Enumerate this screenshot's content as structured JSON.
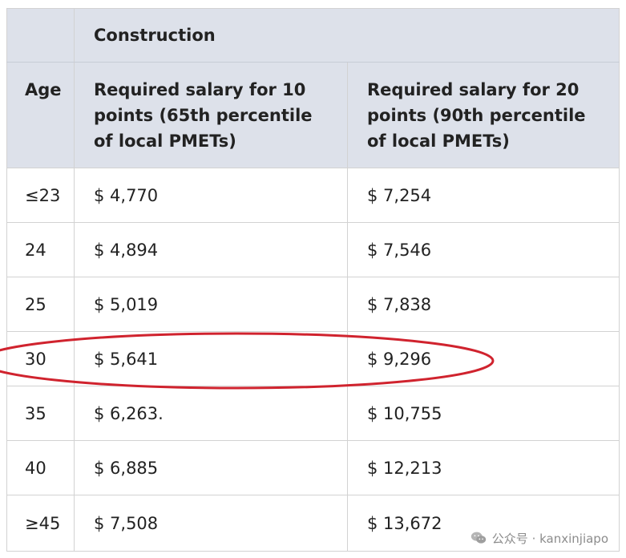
{
  "table": {
    "section_title": "Construction",
    "headers": {
      "age": "Age",
      "col_10": "Required salary for 10 points (65th percentile of local PMETs)",
      "col_20": "Required salary for 20 points (90th percentile of local PMETs)"
    },
    "rows": [
      {
        "age": "≤23",
        "salary_10": "$ 4,770",
        "salary_20": "$ 7,254"
      },
      {
        "age": "24",
        "salary_10": "$ 4,894",
        "salary_20": "$ 7,546"
      },
      {
        "age": "25",
        "salary_10": "$ 5,019",
        "salary_20": "$ 7,838"
      },
      {
        "age": "30",
        "salary_10": "$ 5,641",
        "salary_20": "$ 9,296"
      },
      {
        "age": "35",
        "salary_10": "$ 6,263.",
        "salary_20": "$ 10,755"
      },
      {
        "age": "40",
        "salary_10": "$ 6,885",
        "salary_20": "$ 12,213"
      },
      {
        "age": "≥45",
        "salary_10": "$ 7,508",
        "salary_20": "$ 13,672"
      }
    ],
    "highlighted_row_age": "30"
  },
  "annotation": {
    "ellipse_color": "#d0232e"
  },
  "watermark": {
    "text": "公众号 · kanxinjiapo",
    "icon": "wechat-icon"
  }
}
